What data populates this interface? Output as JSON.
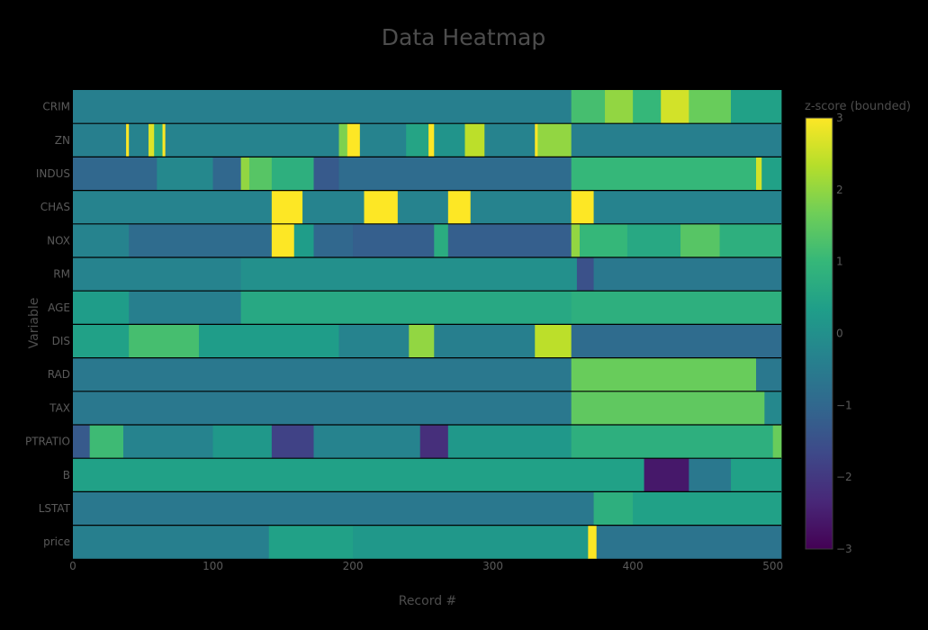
{
  "chart_data": {
    "type": "heatmap",
    "title": "Data Heatmap",
    "xlabel": "Record #",
    "ylabel": "Variable",
    "xlim": [
      0,
      506
    ],
    "x_ticks": [
      0,
      100,
      200,
      300,
      400,
      500
    ],
    "rows": [
      "CRIM",
      "ZN",
      "INDUS",
      "CHAS",
      "NOX",
      "RM",
      "AGE",
      "DIS",
      "RAD",
      "TAX",
      "PTRATIO",
      "B",
      "LSTAT",
      "price"
    ],
    "colorbar": {
      "title": "z-score (bounded)",
      "min": -3,
      "max": 3,
      "ticks": [
        3,
        2,
        1,
        0,
        -1,
        -2,
        -3
      ],
      "tick_labels": [
        "3",
        "2",
        "1",
        "0",
        "−1",
        "−2",
        "−3"
      ]
    },
    "colorscale": [
      "#440154",
      "#482878",
      "#3e4989",
      "#31688e",
      "#26828e",
      "#1f9e89",
      "#35b779",
      "#6ece58",
      "#b5de2b",
      "#fde725"
    ],
    "segments": {
      "CRIM": [
        [
          0,
          356,
          -0.4
        ],
        [
          356,
          380,
          1.2
        ],
        [
          380,
          400,
          2.0
        ],
        [
          400,
          420,
          1.0
        ],
        [
          420,
          440,
          2.6
        ],
        [
          440,
          470,
          1.6
        ],
        [
          470,
          506,
          0.4
        ]
      ],
      "ZN": [
        [
          0,
          38,
          -0.4
        ],
        [
          38,
          40,
          3.0
        ],
        [
          40,
          54,
          -0.3
        ],
        [
          54,
          58,
          2.7
        ],
        [
          58,
          64,
          0.6
        ],
        [
          64,
          66,
          3.0
        ],
        [
          66,
          190,
          -0.3
        ],
        [
          190,
          196,
          1.8
        ],
        [
          196,
          205,
          3.0
        ],
        [
          205,
          238,
          -0.3
        ],
        [
          238,
          254,
          0.5
        ],
        [
          254,
          258,
          3.0
        ],
        [
          258,
          280,
          0.1
        ],
        [
          280,
          294,
          2.4
        ],
        [
          294,
          330,
          -0.3
        ],
        [
          330,
          332,
          3.0
        ],
        [
          332,
          356,
          2.0
        ],
        [
          356,
          506,
          -0.4
        ]
      ],
      "INDUS": [
        [
          0,
          60,
          -1.0
        ],
        [
          60,
          100,
          -0.2
        ],
        [
          100,
          120,
          -1.0
        ],
        [
          120,
          126,
          2.0
        ],
        [
          126,
          142,
          1.4
        ],
        [
          142,
          172,
          0.8
        ],
        [
          172,
          190,
          -1.3
        ],
        [
          190,
          356,
          -0.9
        ],
        [
          356,
          488,
          1.0
        ],
        [
          488,
          492,
          2.6
        ],
        [
          492,
          506,
          0.4
        ]
      ],
      "CHAS": [
        [
          0,
          142,
          -0.3
        ],
        [
          142,
          164,
          3.0
        ],
        [
          164,
          208,
          -0.3
        ],
        [
          208,
          232,
          3.0
        ],
        [
          232,
          268,
          -0.3
        ],
        [
          268,
          284,
          3.0
        ],
        [
          284,
          356,
          -0.3
        ],
        [
          356,
          372,
          3.0
        ],
        [
          372,
          506,
          -0.3
        ]
      ],
      "NOX": [
        [
          0,
          40,
          -0.3
        ],
        [
          40,
          142,
          -0.9
        ],
        [
          142,
          158,
          3.0
        ],
        [
          158,
          172,
          0.3
        ],
        [
          172,
          200,
          -1.0
        ],
        [
          200,
          258,
          -1.2
        ],
        [
          258,
          268,
          0.7
        ],
        [
          268,
          356,
          -1.2
        ],
        [
          356,
          362,
          2.0
        ],
        [
          362,
          396,
          1.0
        ],
        [
          396,
          434,
          0.6
        ],
        [
          434,
          462,
          1.4
        ],
        [
          462,
          506,
          0.8
        ]
      ],
      "RM": [
        [
          0,
          120,
          -0.3
        ],
        [
          120,
          360,
          0.0
        ],
        [
          360,
          372,
          -1.5
        ],
        [
          372,
          506,
          -0.6
        ]
      ],
      "AGE": [
        [
          0,
          40,
          0.3
        ],
        [
          40,
          120,
          -0.4
        ],
        [
          120,
          356,
          0.6
        ],
        [
          356,
          506,
          0.8
        ]
      ],
      "DIS": [
        [
          0,
          40,
          0.4
        ],
        [
          40,
          90,
          1.2
        ],
        [
          90,
          190,
          0.3
        ],
        [
          190,
          240,
          -0.3
        ],
        [
          240,
          258,
          2.0
        ],
        [
          258,
          330,
          -0.4
        ],
        [
          330,
          356,
          2.4
        ],
        [
          356,
          506,
          -0.9
        ]
      ],
      "RAD": [
        [
          0,
          356,
          -0.6
        ],
        [
          356,
          488,
          1.6
        ],
        [
          488,
          506,
          -0.6
        ]
      ],
      "TAX": [
        [
          0,
          356,
          -0.6
        ],
        [
          356,
          494,
          1.5
        ],
        [
          494,
          506,
          -0.2
        ]
      ],
      "PTRATIO": [
        [
          0,
          12,
          -1.3
        ],
        [
          12,
          36,
          1.1
        ],
        [
          36,
          100,
          -0.3
        ],
        [
          100,
          142,
          0.2
        ],
        [
          142,
          172,
          -1.8
        ],
        [
          172,
          248,
          -0.3
        ],
        [
          248,
          268,
          -2.2
        ],
        [
          268,
          356,
          0.2
        ],
        [
          356,
          500,
          0.8
        ],
        [
          500,
          506,
          1.6
        ]
      ],
      "B": [
        [
          0,
          408,
          0.4
        ],
        [
          408,
          440,
          -2.6
        ],
        [
          440,
          470,
          -0.6
        ],
        [
          470,
          506,
          0.4
        ]
      ],
      "LSTAT": [
        [
          0,
          372,
          -0.6
        ],
        [
          372,
          400,
          0.8
        ],
        [
          400,
          506,
          0.4
        ]
      ],
      "price": [
        [
          0,
          140,
          -0.4
        ],
        [
          140,
          200,
          0.4
        ],
        [
          200,
          368,
          0.2
        ],
        [
          368,
          374,
          3.0
        ],
        [
          374,
          506,
          -0.7
        ]
      ]
    }
  }
}
